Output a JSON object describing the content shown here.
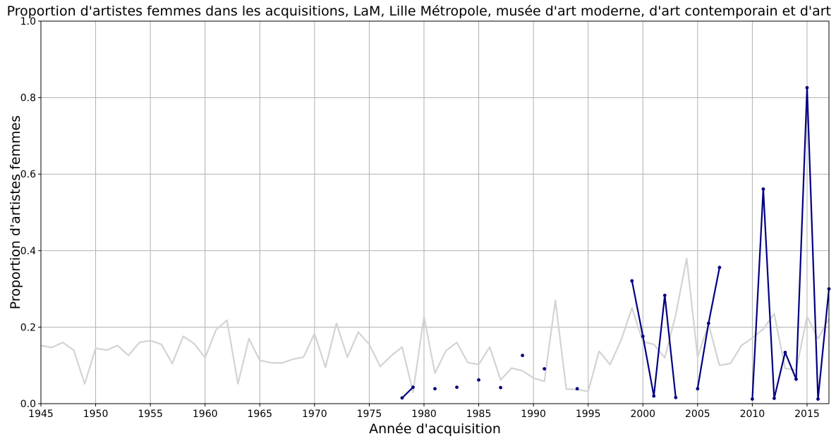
{
  "chart_data": {
    "type": "line",
    "title": "Proportion d'artistes femmes dans les acquisitions, LaM, Lille Métropole, musée d'art moderne, d'art contemporain et d'art brut",
    "xlabel": "Année d'acquisition",
    "ylabel": "Proportion d'artistes femmes",
    "xlim": [
      1945,
      2017
    ],
    "ylim": [
      0,
      1
    ],
    "xticks": [
      "1945",
      "1950",
      "1955",
      "1960",
      "1965",
      "1970",
      "1975",
      "1980",
      "1985",
      "1990",
      "1995",
      "2000",
      "2005",
      "2010",
      "2015"
    ],
    "yticks": [
      "0.0",
      "0.2",
      "0.4",
      "0.6",
      "0.8",
      "1.0"
    ],
    "grid": true,
    "colors": {
      "background_series": "#d3d3d3",
      "highlight_series": "#000080",
      "grid": "#b0b0b0"
    },
    "series": [
      {
        "x": [
          1945,
          1946,
          1947,
          1948,
          1949,
          1950,
          1951,
          1952,
          1953,
          1954,
          1955,
          1956,
          1957,
          1958,
          1959,
          1960,
          1961,
          1962,
          1963,
          1964,
          1965,
          1966,
          1967,
          1968,
          1969,
          1970,
          1971,
          1972,
          1973,
          1974,
          1975,
          1976,
          1977,
          1978,
          1979,
          1980,
          1981,
          1982,
          1983,
          1984,
          1985,
          1986,
          1987,
          1988,
          1989,
          1990,
          1991,
          1992,
          1993,
          1994,
          1995,
          1996,
          1997,
          1998,
          1999,
          2000,
          2001,
          2002,
          2003,
          2004,
          2005,
          2006,
          2007,
          2008,
          2009,
          2010,
          2011,
          2012,
          2013,
          2014,
          2015,
          2016,
          2017
        ],
        "values": [
          0.152,
          0.147,
          0.16,
          0.14,
          0.052,
          0.145,
          0.14,
          0.152,
          0.126,
          0.16,
          0.165,
          0.155,
          0.105,
          0.176,
          0.157,
          0.12,
          0.193,
          0.218,
          0.052,
          0.17,
          0.113,
          0.107,
          0.106,
          0.116,
          0.122,
          0.183,
          0.095,
          0.21,
          0.122,
          0.187,
          0.155,
          0.097,
          0.125,
          0.148,
          0.03,
          0.228,
          0.08,
          0.138,
          0.16,
          0.108,
          0.102,
          0.148,
          0.062,
          0.093,
          0.086,
          0.067,
          0.058,
          0.27,
          0.038,
          0.037,
          0.032,
          0.137,
          0.102,
          0.165,
          0.25,
          0.162,
          0.155,
          0.12,
          0.232,
          0.38,
          0.122,
          0.208,
          0.1,
          0.105,
          0.152,
          0.172,
          0.195,
          0.235,
          0.092,
          0.088,
          0.228,
          0.17,
          0.222
        ]
      },
      {
        "x": [
          1978,
          1979,
          1981,
          1983,
          1985,
          1987,
          1989,
          1991,
          1994,
          1999,
          2000,
          2001,
          2002,
          2003,
          2005,
          2006,
          2007,
          2010,
          2011,
          2012,
          2013,
          2014,
          2015,
          2016,
          2017
        ],
        "values": [
          0.015,
          0.043,
          0.039,
          0.043,
          0.062,
          0.042,
          0.126,
          0.091,
          0.039,
          0.321,
          0.176,
          0.02,
          0.283,
          0.016,
          0.039,
          0.21,
          0.356,
          0.012,
          0.561,
          0.014,
          0.134,
          0.064,
          0.826,
          0.012,
          0.3
        ]
      }
    ]
  }
}
